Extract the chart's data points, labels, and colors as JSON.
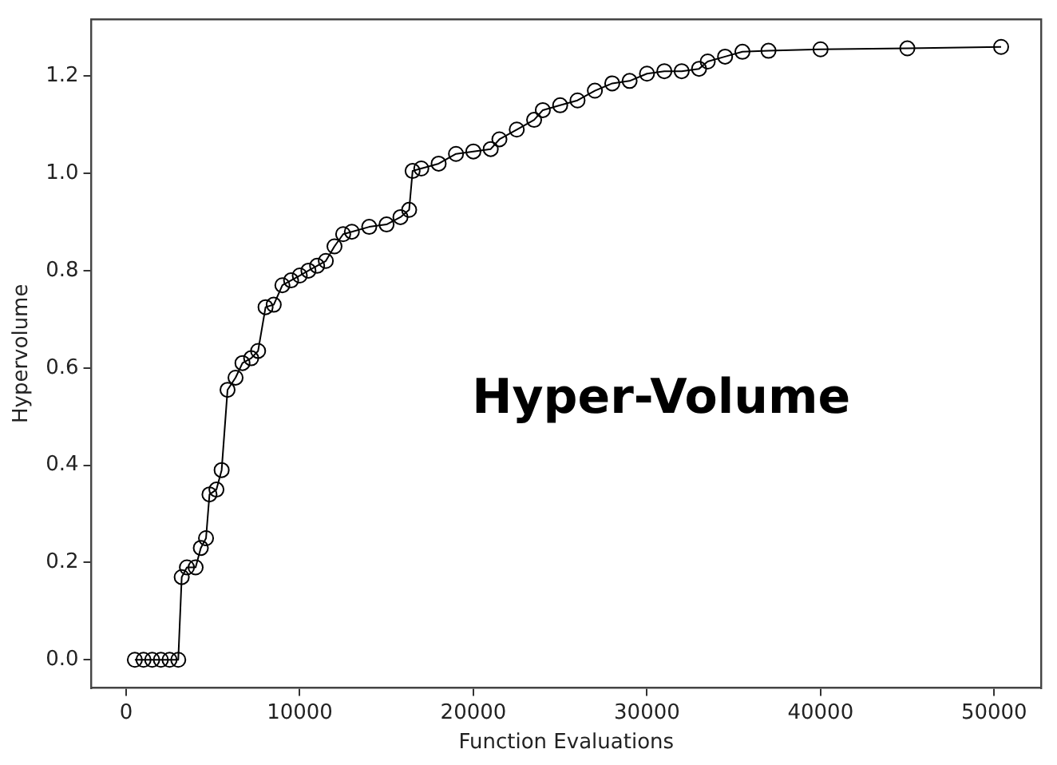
{
  "chart_data": {
    "type": "line",
    "xlabel": "Function Evaluations",
    "ylabel": "Hypervolume",
    "annotations": [
      "Hyper-Volume"
    ],
    "x": [
      500,
      1000,
      1500,
      2000,
      2500,
      3000,
      3200,
      3500,
      4000,
      4300,
      4600,
      4800,
      5200,
      5500,
      5840,
      6300,
      6700,
      7200,
      7600,
      8030,
      8500,
      9000,
      9500,
      10000,
      10500,
      11000,
      11500,
      12000,
      12500,
      13000,
      14000,
      15000,
      15800,
      16300,
      16500,
      17000,
      18000,
      19000,
      20000,
      21000,
      21500,
      22500,
      23500,
      24000,
      25000,
      26000,
      27000,
      28000,
      29000,
      30000,
      31000,
      32000,
      33000,
      33500,
      34500,
      35500,
      37000,
      40000,
      45000,
      50400
    ],
    "series": [
      {
        "color": "#000000",
        "values": [
          0,
          0,
          0,
          0,
          0,
          0,
          0.17,
          0.19,
          0.19,
          0.23,
          0.25,
          0.34,
          0.35,
          0.39,
          0.555,
          0.58,
          0.61,
          0.62,
          0.635,
          0.725,
          0.73,
          0.77,
          0.78,
          0.79,
          0.8,
          0.81,
          0.82,
          0.85,
          0.875,
          0.88,
          0.89,
          0.895,
          0.91,
          0.925,
          1.005,
          1.01,
          1.02,
          1.04,
          1.045,
          1.05,
          1.07,
          1.09,
          1.11,
          1.13,
          1.14,
          1.15,
          1.17,
          1.185,
          1.19,
          1.205,
          1.21,
          1.21,
          1.215,
          1.23,
          1.24,
          1.25,
          1.252,
          1.255,
          1.257,
          1.26
        ]
      }
    ],
    "xlim": [
      -2000,
      52700
    ],
    "ylim": [
      -0.058,
      1.317
    ],
    "xticks": [
      0,
      10000,
      20000,
      30000,
      40000,
      50000
    ],
    "yticks": [
      {
        "value": 0,
        "label": "0.0"
      },
      {
        "value": 0.2,
        "label": "0.2"
      },
      {
        "value": 0.4,
        "label": "0.4"
      },
      {
        "value": 0.6,
        "label": "0.6"
      },
      {
        "value": 0.8,
        "label": "0.8"
      },
      {
        "value": 1.0,
        "label": "1.0"
      },
      {
        "value": 1.2,
        "label": "1.2"
      }
    ],
    "grid": false,
    "legend": false,
    "marker": "circle",
    "line_style": "solid"
  }
}
